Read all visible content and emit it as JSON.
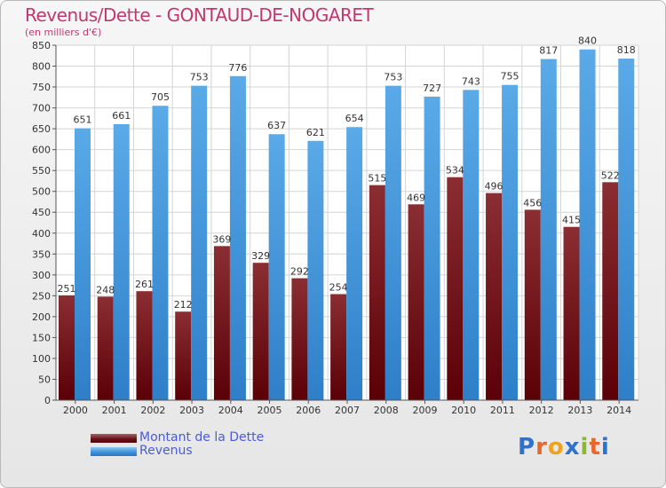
{
  "title": "Revenus/Dette - GONTAUD-DE-NOGARET",
  "subtitle": "(en milliers d'€)",
  "logo": {
    "letters": [
      "P",
      "r",
      "o",
      "x",
      "i",
      "t",
      "i"
    ],
    "colors": [
      "#2e73c9",
      "#e8672a",
      "#f0a21e",
      "#2e73c9",
      "#8ab82e",
      "#e8672a",
      "#2e73c9"
    ]
  },
  "colors": {
    "dette": "#6b0e14",
    "revenus": "#3a8fd8",
    "title": "#c2386e",
    "legend_text": "#4a5cd8"
  },
  "chart_data": {
    "type": "bar",
    "categories": [
      "2000",
      "2001",
      "2002",
      "2003",
      "2004",
      "2005",
      "2006",
      "2007",
      "2008",
      "2009",
      "2010",
      "2011",
      "2012",
      "2013",
      "2014"
    ],
    "series": [
      {
        "name": "Montant de la Dette",
        "values": [
          251,
          248,
          261,
          212,
          369,
          329,
          292,
          254,
          515,
          469,
          534,
          496,
          456,
          415,
          522
        ]
      },
      {
        "name": "Revenus",
        "values": [
          651,
          661,
          705,
          753,
          776,
          637,
          621,
          654,
          753,
          727,
          743,
          755,
          817,
          840,
          818
        ]
      }
    ],
    "ylim": [
      0,
      850
    ],
    "yticks": [
      0,
      50,
      100,
      150,
      200,
      250,
      300,
      350,
      400,
      450,
      500,
      550,
      600,
      650,
      700,
      750,
      800,
      850
    ],
    "grid": true,
    "legend_position": "bottom-left"
  }
}
